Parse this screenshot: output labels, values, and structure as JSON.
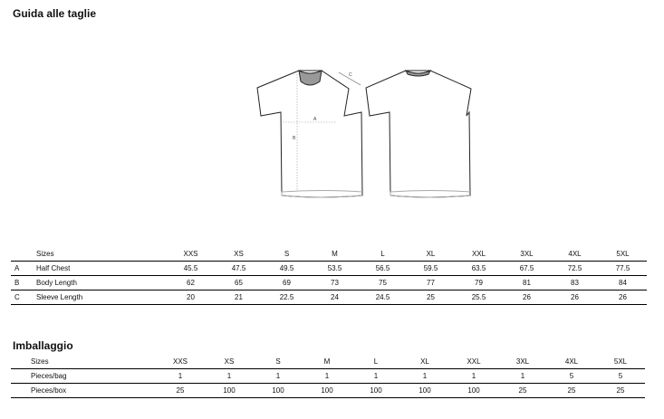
{
  "size_guide": {
    "title": "Guida alle taglie",
    "header_label": "Sizes",
    "sizes": [
      "XXS",
      "XS",
      "S",
      "M",
      "L",
      "XL",
      "XXL",
      "3XL",
      "4XL",
      "5XL"
    ],
    "rows": [
      {
        "letter": "A",
        "label": "Half Chest",
        "values": [
          "45.5",
          "47.5",
          "49.5",
          "53.5",
          "56.5",
          "59.5",
          "63.5",
          "67.5",
          "72.5",
          "77.5"
        ]
      },
      {
        "letter": "B",
        "label": "Body Length",
        "values": [
          "62",
          "65",
          "69",
          "73",
          "75",
          "77",
          "79",
          "81",
          "83",
          "84"
        ]
      },
      {
        "letter": "C",
        "label": "Sleeve Length",
        "values": [
          "20",
          "21",
          "22.5",
          "24",
          "24.5",
          "25",
          "25.5",
          "26",
          "26",
          "26"
        ]
      }
    ]
  },
  "diagram": {
    "labels": {
      "a": "A",
      "b": "B",
      "c": "C"
    }
  },
  "packaging": {
    "title": "Imballaggio",
    "header_label": "Sizes",
    "sizes": [
      "XXS",
      "XS",
      "S",
      "M",
      "L",
      "XL",
      "XXL",
      "3XL",
      "4XL",
      "5XL"
    ],
    "rows": [
      {
        "label": "Pieces/bag",
        "values": [
          "1",
          "1",
          "1",
          "1",
          "1",
          "1",
          "1",
          "1",
          "5",
          "5"
        ]
      },
      {
        "label": "Pieces/box",
        "values": [
          "25",
          "100",
          "100",
          "100",
          "100",
          "100",
          "100",
          "25",
          "25",
          "25"
        ]
      }
    ]
  }
}
